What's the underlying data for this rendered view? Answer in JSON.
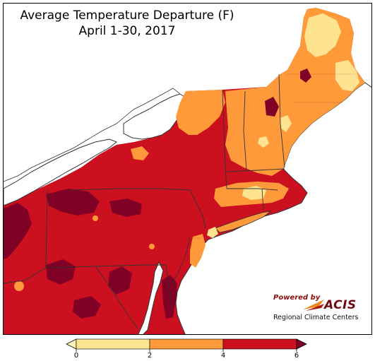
{
  "title": {
    "line1": "Average Temperature Departure (F)",
    "line2": "April 1-30, 2017"
  },
  "legend": {
    "bins": [
      {
        "from": 0,
        "to": 2,
        "color": "#fee391"
      },
      {
        "from": 2,
        "to": 4,
        "color": "#fe9a3a"
      },
      {
        "from": 4,
        "to": 6,
        "color": "#cc1020"
      }
    ],
    "below_color": "#fff2b8",
    "above_color": "#800026",
    "tick_labels": [
      "0",
      "2",
      "4",
      "6"
    ]
  },
  "colors": {
    "lake": "#ffffff",
    "ocean": "#ffffff",
    "border": "#333333",
    "county": "#8a1a1a"
  },
  "credit": {
    "powered_by": "Powered by",
    "brand": "ACIS",
    "center": "Regional Climate Centers"
  }
}
